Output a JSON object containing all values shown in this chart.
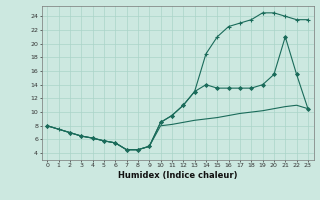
{
  "xlabel": "Humidex (Indice chaleur)",
  "bg_color": "#cce8e0",
  "grid_color": "#aad4c8",
  "line_color": "#1a6b5a",
  "xlim": [
    -0.5,
    23.5
  ],
  "ylim": [
    3,
    25.5
  ],
  "xticks": [
    0,
    1,
    2,
    3,
    4,
    5,
    6,
    7,
    8,
    9,
    10,
    11,
    12,
    13,
    14,
    15,
    16,
    17,
    18,
    19,
    20,
    21,
    22,
    23
  ],
  "yticks": [
    4,
    6,
    8,
    10,
    12,
    14,
    16,
    18,
    20,
    22,
    24
  ],
  "line1_x": [
    0,
    1,
    2,
    3,
    4,
    5,
    6,
    7,
    8,
    9,
    10,
    11,
    12,
    13,
    14,
    15,
    16,
    17,
    18,
    19,
    20,
    21,
    22,
    23
  ],
  "line1_y": [
    8,
    7.5,
    7,
    6.5,
    6.2,
    5.8,
    5.5,
    4.5,
    4.5,
    5.0,
    8.5,
    9.5,
    11.0,
    13.0,
    18.5,
    21.0,
    22.5,
    23.0,
    23.5,
    24.5,
    24.5,
    24.0,
    23.5,
    23.5
  ],
  "line2_x": [
    0,
    2,
    3,
    4,
    5,
    6,
    7,
    8,
    9,
    10,
    11,
    12,
    13,
    14,
    15,
    16,
    17,
    18,
    19,
    20,
    21,
    22,
    23
  ],
  "line2_y": [
    8,
    7,
    6.5,
    6.2,
    5.8,
    5.5,
    4.5,
    4.5,
    5.0,
    8.5,
    9.5,
    11.0,
    13.0,
    14.0,
    13.5,
    13.5,
    13.5,
    13.5,
    14.0,
    15.5,
    21.0,
    15.5,
    10.5
  ],
  "line3_x": [
    0,
    1,
    2,
    3,
    4,
    5,
    6,
    7,
    8,
    9,
    10,
    11,
    12,
    13,
    14,
    15,
    16,
    17,
    18,
    19,
    20,
    21,
    22,
    23
  ],
  "line3_y": [
    8,
    7.5,
    7.0,
    6.5,
    6.2,
    5.8,
    5.5,
    4.5,
    4.5,
    5.0,
    8.0,
    8.2,
    8.5,
    8.8,
    9.0,
    9.2,
    9.5,
    9.8,
    10.0,
    10.2,
    10.5,
    10.8,
    11.0,
    10.5
  ]
}
